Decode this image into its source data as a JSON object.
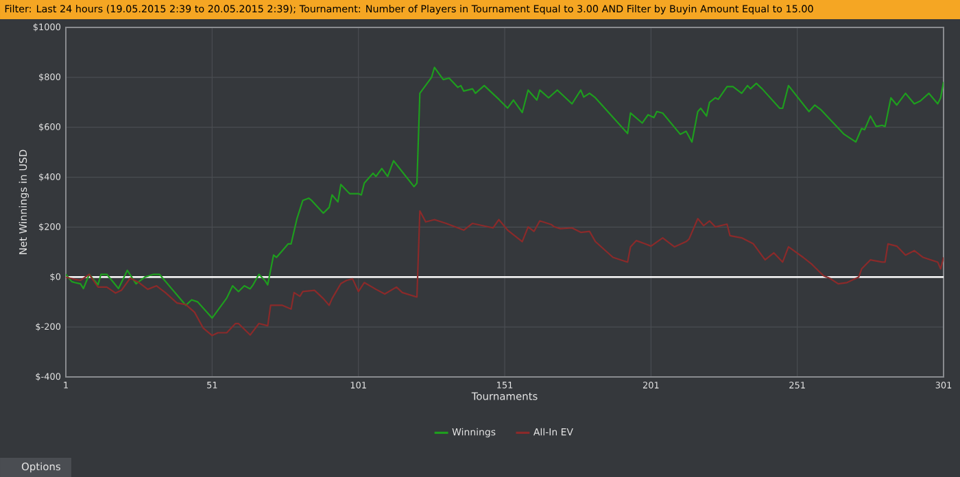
{
  "chart_data": {
    "type": "line",
    "title": "Filter: Last 24 hours (19.05.2015 2:39 to 20.05.2015 2:39); Tournament: Number of Players in Tournament Equal to 3.00 AND Filter by Buyin Amount Equal to 15.00",
    "xlabel": "Tournaments",
    "ylabel": "Net Winnings in USD",
    "xlim": [
      1,
      301
    ],
    "xticks": [
      1,
      51,
      101,
      151,
      201,
      251,
      301
    ],
    "ylim": [
      -400,
      1000
    ],
    "yticks": [
      {
        "value": -400,
        "label": "$-400"
      },
      {
        "value": -200,
        "label": "$-200"
      },
      {
        "value": 0,
        "label": "$0"
      },
      {
        "value": 200,
        "label": "$200"
      },
      {
        "value": 400,
        "label": "$400"
      },
      {
        "value": 600,
        "label": "$600"
      },
      {
        "value": 800,
        "label": "$800"
      },
      {
        "value": 1000,
        "label": "$1000"
      }
    ],
    "grid": true,
    "legend": "bottom",
    "marker": "none",
    "line_style": "solid",
    "ref_lines": [
      {
        "axis": "y",
        "value": 0,
        "color": "#ffffff"
      }
    ],
    "annotations": [
      "Options"
    ],
    "series": [
      {
        "name": "Winnings",
        "color": "#1e9e1e",
        "x": [
          1,
          3,
          4,
          6,
          7,
          9,
          12,
          13,
          15,
          19,
          22,
          25,
          28,
          31,
          33,
          42,
          44,
          46,
          51,
          56,
          58,
          60,
          62,
          64,
          65,
          67,
          69,
          70,
          72,
          73,
          75,
          77,
          78,
          80,
          82,
          84,
          85,
          89,
          91,
          92,
          94,
          95,
          98,
          101,
          102,
          103,
          106,
          107,
          109,
          111,
          113,
          120,
          121,
          122,
          126,
          127,
          130,
          132,
          135,
          136,
          137,
          140,
          141,
          144,
          149,
          152,
          154,
          157,
          159,
          162,
          163,
          166,
          169,
          174,
          177,
          178,
          180,
          182,
          193,
          194,
          198,
          200,
          202,
          203,
          205,
          211,
          213,
          215,
          217,
          218,
          220,
          221,
          223,
          224,
          227,
          229,
          232,
          234,
          235,
          237,
          239,
          245,
          246,
          248,
          255,
          257,
          259,
          267,
          271,
          273,
          274,
          276,
          278,
          280,
          281,
          283,
          285,
          288,
          291,
          293,
          296,
          299,
          300,
          301
        ],
        "values": [
          11,
          -18,
          -22,
          -27,
          -46,
          11,
          -31,
          11,
          11,
          -46,
          27,
          -27,
          0,
          11,
          11,
          -113,
          -91,
          -99,
          -164,
          -84,
          -35,
          -58,
          -35,
          -47,
          -31,
          11,
          -13,
          -31,
          88,
          79,
          106,
          133,
          133,
          234,
          307,
          316,
          307,
          256,
          279,
          329,
          301,
          371,
          334,
          334,
          329,
          376,
          416,
          403,
          435,
          403,
          466,
          362,
          376,
          736,
          800,
          840,
          791,
          797,
          760,
          767,
          745,
          754,
          736,
          767,
          712,
          677,
          709,
          659,
          749,
          709,
          749,
          718,
          749,
          694,
          749,
          721,
          736,
          718,
          575,
          657,
          617,
          650,
          639,
          663,
          657,
          572,
          584,
          541,
          663,
          676,
          645,
          700,
          718,
          712,
          763,
          763,
          736,
          767,
          754,
          776,
          754,
          676,
          676,
          767,
          663,
          689,
          671,
          572,
          541,
          595,
          590,
          645,
          603,
          608,
          603,
          718,
          689,
          736,
          694,
          705,
          736,
          694,
          718,
          782
        ]
      },
      {
        "name": "All-In EV",
        "color": "#8b2a2a",
        "x": [
          1,
          4,
          6,
          9,
          12,
          15,
          18,
          20,
          23,
          26,
          29,
          32,
          35,
          39,
          42,
          45,
          48,
          51,
          53,
          56,
          59,
          60,
          64,
          67,
          70,
          71,
          75,
          78,
          79,
          81,
          82,
          86,
          89,
          91,
          92,
          95,
          97,
          99,
          101,
          103,
          107,
          110,
          114,
          116,
          121,
          122,
          124,
          127,
          131,
          137,
          140,
          147,
          149,
          152,
          157,
          159,
          161,
          163,
          167,
          168,
          170,
          174,
          177,
          180,
          182,
          188,
          193,
          194,
          196,
          199,
          201,
          205,
          209,
          213,
          214,
          217,
          219,
          221,
          223,
          227,
          228,
          232,
          236,
          240,
          243,
          246,
          248,
          253,
          256,
          260,
          262,
          265,
          268,
          272,
          273,
          276,
          280,
          281,
          282,
          285,
          288,
          291,
          294,
          299,
          300,
          301
        ],
        "values": [
          0,
          -9,
          -13,
          11,
          -40,
          -40,
          -64,
          -53,
          -4,
          -22,
          -49,
          -35,
          -62,
          -104,
          -110,
          -141,
          -205,
          -234,
          -223,
          -223,
          -186,
          -186,
          -232,
          -186,
          -195,
          -113,
          -113,
          -128,
          -62,
          -77,
          -58,
          -53,
          -86,
          -113,
          -86,
          -26,
          -13,
          -7,
          -58,
          -22,
          -49,
          -68,
          -40,
          -62,
          -80,
          265,
          221,
          230,
          215,
          188,
          215,
          197,
          230,
          188,
          142,
          201,
          183,
          225,
          210,
          201,
          194,
          197,
          179,
          183,
          142,
          79,
          60,
          121,
          146,
          133,
          124,
          157,
          121,
          142,
          152,
          234,
          206,
          225,
          201,
          212,
          166,
          157,
          133,
          69,
          97,
          60,
          121,
          79,
          51,
          5,
          -4,
          -27,
          -22,
          0,
          33,
          69,
          60,
          60,
          133,
          124,
          88,
          106,
          79,
          60,
          33,
          79
        ]
      }
    ]
  }
}
